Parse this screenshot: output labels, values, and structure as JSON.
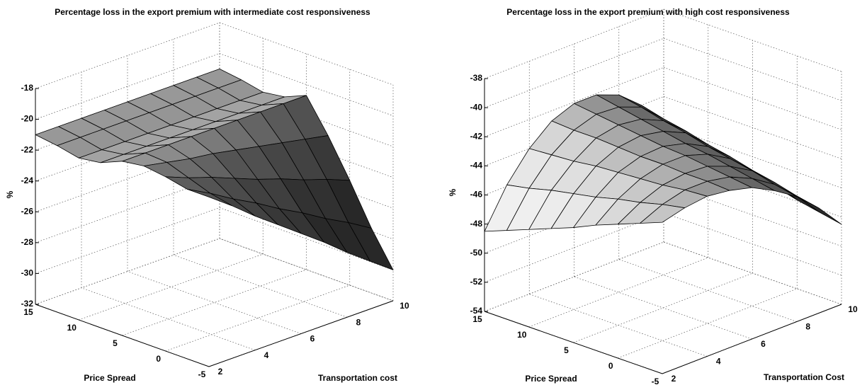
{
  "chart_data": [
    {
      "type": "surface",
      "title": "Percentage loss in the export premium with intermediate cost responsiveness",
      "xlabel": "Price Spread",
      "ylabel": "Transportation cost",
      "zlabel": "%",
      "x": [
        -5,
        -2.5,
        0,
        2.5,
        5,
        7.5,
        10,
        12.5,
        15
      ],
      "y": [
        2,
        3,
        4,
        5,
        6,
        7,
        8,
        9,
        10
      ],
      "z": [
        [
          -21,
          -22.1,
          -23.3,
          -24.4,
          -25.5,
          -26.6,
          -27.8,
          -28.9,
          -30.0
        ],
        [
          -21,
          -21.8,
          -22.7,
          -23.5,
          -24.4,
          -25.2,
          -26.1,
          -26.9,
          -27.8
        ],
        [
          -20.7,
          -21.3,
          -21.8,
          -22.4,
          -23.0,
          -23.5,
          -24.1,
          -24.6,
          -25.2
        ],
        [
          -20.5,
          -20.8,
          -21.1,
          -21.3,
          -21.6,
          -21.9,
          -22.2,
          -22.5,
          -22.8
        ],
        [
          -20.7,
          -20.7,
          -20.7,
          -20.7,
          -20.7,
          -20.7,
          -20.7,
          -20.7,
          -20.7
        ],
        [
          -21.3,
          -21.3,
          -21.3,
          -21.3,
          -21.3,
          -21.3,
          -21.3,
          -21.3,
          -21.3
        ],
        [
          -21.5,
          -21.5,
          -21.5,
          -21.5,
          -21.5,
          -21.5,
          -21.5,
          -21.5,
          -21.5
        ],
        [
          -21.2,
          -21.2,
          -21.2,
          -21.2,
          -21.2,
          -21.2,
          -21.2,
          -21.2,
          -21.2
        ],
        [
          -21.0,
          -21.0,
          -21.0,
          -21.0,
          -21.0,
          -21.0,
          -21.0,
          -21.0,
          -21.0
        ]
      ],
      "xlim": [
        -5,
        15
      ],
      "ylim": [
        2,
        10
      ],
      "zlim": [
        -32,
        -18
      ],
      "xticks": [
        -5,
        0,
        5,
        10,
        15
      ],
      "yticks": [
        2,
        4,
        6,
        8,
        10
      ],
      "zticks": [
        -32,
        -30,
        -28,
        -26,
        -24,
        -22,
        -20,
        -18
      ],
      "grid": true
    },
    {
      "type": "surface",
      "title": "Percentage loss in the export premium with high cost responsiveness",
      "xlabel": "Price Spread",
      "ylabel": "Transportation Cost",
      "zlabel": "%",
      "x": [
        -5,
        -2.5,
        0,
        2.5,
        5,
        7.5,
        10,
        12.5,
        15
      ],
      "y": [
        2,
        3,
        4,
        5,
        6,
        7,
        8,
        9,
        10
      ],
      "z": [
        [
          -43.6,
          -43.2,
          -43.0,
          -43.2,
          -43.6,
          -44.4,
          -45.4,
          -46.8,
          -48.5
        ],
        [
          -44.2,
          -43.5,
          -43.1,
          -43.1,
          -43.4,
          -44.1,
          -45.1,
          -46.5,
          -48.2
        ],
        [
          -44.8,
          -43.9,
          -43.3,
          -43.1,
          -43.2,
          -43.8,
          -44.7,
          -46.1,
          -47.9
        ],
        [
          -45.4,
          -44.2,
          -43.4,
          -43.0,
          -43.0,
          -43.5,
          -44.4,
          -45.8,
          -47.5
        ],
        [
          -46.1,
          -44.6,
          -43.5,
          -43.0,
          -42.9,
          -43.3,
          -44.1,
          -45.4,
          -47.2
        ],
        [
          -46.7,
          -44.9,
          -43.6,
          -42.9,
          -42.7,
          -43.0,
          -43.7,
          -45.1,
          -46.9
        ],
        [
          -47.3,
          -45.2,
          -43.8,
          -42.8,
          -42.5,
          -42.7,
          -43.4,
          -44.7,
          -46.6
        ],
        [
          -47.9,
          -45.6,
          -43.9,
          -42.8,
          -42.3,
          -42.4,
          -43.0,
          -44.4,
          -46.2
        ],
        [
          -48.5,
          -45.9,
          -44.0,
          -42.7,
          -42.1,
          -42.1,
          -42.7,
          -44.0,
          -45.9
        ]
      ],
      "xlim": [
        -5,
        15
      ],
      "ylim": [
        2,
        10
      ],
      "zlim": [
        -54,
        -38
      ],
      "xticks": [
        -5,
        0,
        5,
        10,
        15
      ],
      "yticks": [
        2,
        4,
        6,
        8,
        10
      ],
      "zticks": [
        -54,
        -52,
        -50,
        -48,
        -46,
        -44,
        -42,
        -40,
        -38
      ],
      "grid": true
    }
  ]
}
